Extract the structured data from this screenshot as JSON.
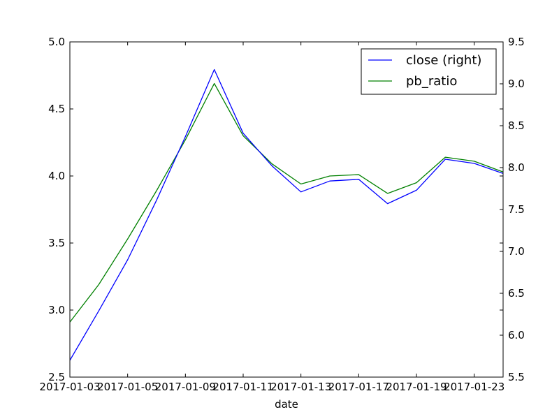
{
  "chart_data": {
    "type": "line",
    "title": "",
    "xlabel": "date",
    "ylabel_left": "",
    "ylabel_right": "",
    "x": [
      "2017-01-03",
      "2017-01-04",
      "2017-01-05",
      "2017-01-06",
      "2017-01-09",
      "2017-01-10",
      "2017-01-11",
      "2017-01-12",
      "2017-01-13",
      "2017-01-16",
      "2017-01-17",
      "2017-01-18",
      "2017-01-19",
      "2017-01-20",
      "2017-01-23",
      "2017-01-24"
    ],
    "xticks": [
      "2017-01-03",
      "2017-01-05",
      "2017-01-09",
      "2017-01-11",
      "2017-01-13",
      "2017-01-17",
      "2017-01-19",
      "2017-01-23"
    ],
    "ylim_left": [
      2.5,
      5.0
    ],
    "yticks_left": [
      "2.5",
      "3.0",
      "3.5",
      "4.0",
      "4.5",
      "5.0"
    ],
    "ylim_right": [
      5.5,
      9.5
    ],
    "yticks_right": [
      "5.5",
      "6.0",
      "6.5",
      "7.0",
      "7.5",
      "8.0",
      "8.5",
      "9.0",
      "9.5"
    ],
    "grid": false,
    "legend_position": "top-right",
    "series": [
      {
        "name": "close (right)",
        "axis": "right",
        "color": "#0000ff",
        "values": [
          5.7,
          6.29,
          6.9,
          7.61,
          8.37,
          9.17,
          8.41,
          8.02,
          7.71,
          7.84,
          7.86,
          7.57,
          7.73,
          8.1,
          8.05,
          7.93
        ]
      },
      {
        "name": "pb_ratio",
        "axis": "left",
        "color": "#008000",
        "values": [
          2.91,
          3.19,
          3.53,
          3.89,
          4.27,
          4.69,
          4.3,
          4.09,
          3.94,
          4.0,
          4.01,
          3.87,
          3.95,
          4.14,
          4.11,
          4.03
        ]
      }
    ]
  }
}
